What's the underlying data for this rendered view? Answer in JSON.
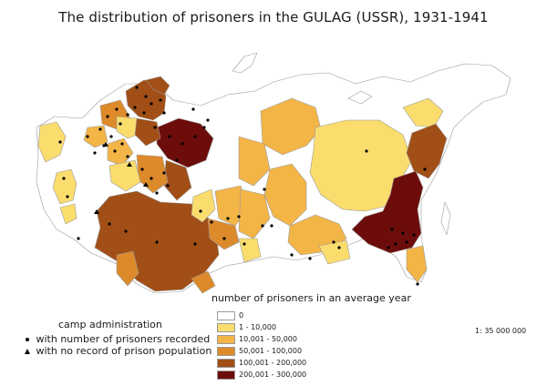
{
  "title": "The distribution of prisoners in the GULAG (USSR), 1931-1941",
  "colors": {
    "c0": "#ffffff",
    "c1": "#fbdd6e",
    "c2": "#f4b547",
    "c3": "#dd8a2a",
    "c4": "#a14f16",
    "c5": "#6d0d0b",
    "border": "#9a9a9a",
    "dot": "#000000"
  },
  "legend": {
    "title": "number of prisoners in an average year",
    "items": [
      {
        "label": "0",
        "color": "#ffffff"
      },
      {
        "label": "1 - 10,000",
        "color": "#fbdd6e"
      },
      {
        "label": "10,001 - 50,000",
        "color": "#f4b547"
      },
      {
        "label": "50,001 - 100,000",
        "color": "#dd8a2a"
      },
      {
        "label": "100,001 - 200,000",
        "color": "#a14f16"
      },
      {
        "label": "200,001 - 300,000",
        "color": "#6d0d0b"
      }
    ]
  },
  "camp_legend": {
    "title": "camp administration",
    "recorded": "with number of prisoners recorded",
    "no_record": "with no record of prison population"
  },
  "scale": "1: 35 000 000"
}
